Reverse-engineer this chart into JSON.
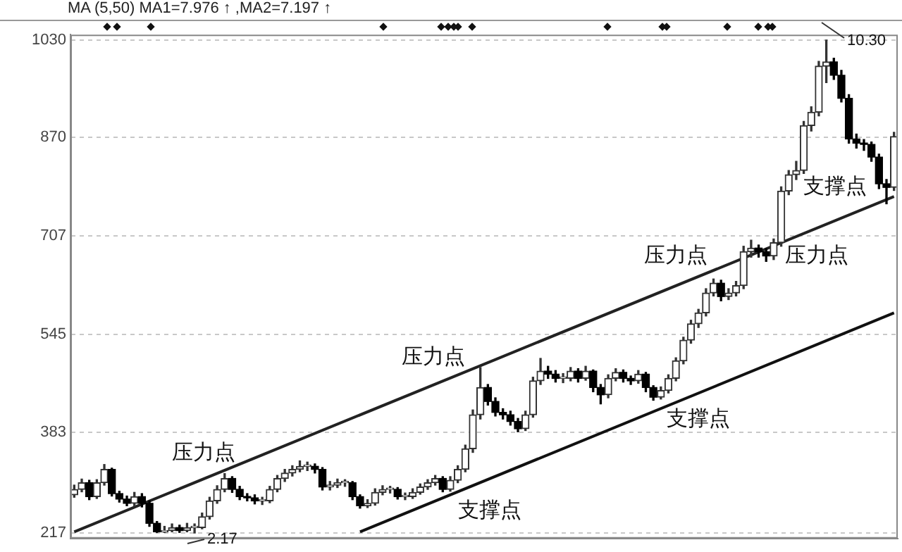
{
  "chart_data": {
    "type": "candlestick",
    "title": "MA (5,50)  MA1=7.976 ↑ ,MA2=7.197 ↑",
    "categories": [
      null,
      null,
      null,
      null,
      null,
      null,
      null,
      null,
      null,
      null,
      null,
      null,
      null,
      null,
      null,
      null,
      null,
      null,
      null,
      null,
      null,
      null,
      null,
      null,
      null,
      null,
      null,
      null,
      null,
      null,
      null,
      null,
      null,
      null,
      null,
      null,
      null,
      null,
      null,
      null,
      null,
      null,
      null,
      null,
      null,
      null,
      null,
      null,
      null,
      null,
      null,
      null,
      null,
      null,
      null,
      null,
      null,
      null,
      null,
      null,
      null,
      null,
      null,
      null,
      null,
      null,
      null,
      null,
      null,
      null,
      null,
      null,
      null,
      null,
      null,
      null,
      null,
      null,
      null,
      null,
      null,
      null,
      null,
      null,
      null,
      null,
      null,
      null,
      null,
      null,
      null,
      null,
      null,
      null,
      null,
      null,
      null,
      null,
      null,
      null,
      null,
      null,
      null,
      null,
      null,
      null,
      null,
      null,
      null,
      null
    ],
    "colors": [
      "#333333",
      "#333333",
      "#000000",
      "#333333",
      "#333333",
      "#000000",
      "#000000",
      "#000000",
      "#333333",
      "#000000",
      "#000000",
      "#000000",
      "#333333",
      "#333333",
      "#000000",
      "#333333",
      "#333333",
      "#333333",
      "#333333",
      "#333333",
      "#333333",
      "#000000",
      "#000000",
      "#000000",
      "#000000",
      "#333333",
      "#333333",
      "#333333",
      "#333333",
      "#333333",
      "#333333",
      "#333333",
      "#000000",
      "#000000",
      "#333333",
      "#333333",
      "#333333",
      "#000000",
      "#000000",
      "#333333",
      "#333333",
      "#333333",
      "#333333",
      "#000000",
      "#333333",
      "#333333",
      "#333333",
      "#333333",
      "#333333",
      "#000000",
      "#333333",
      "#333333",
      "#333333",
      "#333333",
      "#333333",
      "#000000",
      "#000000",
      "#000000",
      "#000000",
      "#000000",
      "#333333",
      "#333333",
      "#333333",
      "#000000",
      "#000000",
      "#333333",
      "#333333",
      "#000000",
      "#333333",
      "#000000",
      "#000000",
      "#333333",
      "#333333",
      "#000000",
      "#000000",
      "#333333",
      "#000000",
      "#000000",
      "#333333",
      "#333333",
      "#333333",
      "#333333",
      "#333333",
      "#333333",
      "#333333",
      "#333333",
      "#000000",
      "#333333",
      "#333333",
      "#333333",
      "#333333",
      "#000000",
      "#000000",
      "#333333",
      "#333333",
      "#333333",
      "#333333",
      "#333333",
      "#333333",
      "#333333",
      "#333333",
      "#000000",
      "#000000",
      "#000000",
      "#000000",
      "#000000",
      "#000000",
      "#000000",
      "#000000",
      "#333333"
    ],
    "ohlc": [
      [
        280,
        296,
        276,
        289
      ],
      [
        289,
        306,
        285,
        300
      ],
      [
        300,
        304,
        272,
        277
      ],
      [
        277,
        305,
        274,
        300
      ],
      [
        300,
        330,
        296,
        322
      ],
      [
        322,
        324,
        278,
        282
      ],
      [
        282,
        286,
        268,
        273
      ],
      [
        273,
        278,
        262,
        266
      ],
      [
        266,
        284,
        262,
        277
      ],
      [
        277,
        282,
        260,
        266
      ],
      [
        266,
        270,
        228,
        233
      ],
      [
        233,
        236,
        218,
        219
      ],
      [
        219,
        228,
        218,
        221
      ],
      [
        221,
        232,
        219,
        226
      ],
      [
        226,
        230,
        218,
        221
      ],
      [
        221,
        233,
        219,
        226
      ],
      [
        226,
        232,
        217,
        226
      ],
      [
        226,
        250,
        224,
        244
      ],
      [
        244,
        276,
        240,
        270
      ],
      [
        270,
        295,
        266,
        289
      ],
      [
        289,
        315,
        285,
        307
      ],
      [
        307,
        310,
        284,
        289
      ],
      [
        289,
        294,
        272,
        277
      ],
      [
        277,
        282,
        270,
        275
      ],
      [
        275,
        280,
        265,
        270
      ],
      [
        270,
        276,
        264,
        270
      ],
      [
        270,
        294,
        267,
        289
      ],
      [
        289,
        312,
        285,
        307
      ],
      [
        307,
        322,
        302,
        316
      ],
      [
        316,
        328,
        311,
        322
      ],
      [
        322,
        336,
        318,
        327
      ],
      [
        327,
        334,
        320,
        327
      ],
      [
        327,
        331,
        316,
        322
      ],
      [
        322,
        325,
        288,
        293
      ],
      [
        293,
        302,
        288,
        296
      ],
      [
        296,
        306,
        292,
        300
      ],
      [
        300,
        305,
        294,
        300
      ],
      [
        300,
        302,
        272,
        277
      ],
      [
        277,
        280,
        258,
        262
      ],
      [
        262,
        272,
        259,
        266
      ],
      [
        266,
        290,
        263,
        284
      ],
      [
        284,
        295,
        280,
        289
      ],
      [
        289,
        294,
        283,
        289
      ],
      [
        289,
        292,
        273,
        277
      ],
      [
        277,
        283,
        272,
        277
      ],
      [
        277,
        290,
        274,
        284
      ],
      [
        284,
        298,
        281,
        293
      ],
      [
        293,
        305,
        289,
        300
      ],
      [
        300,
        312,
        296,
        307
      ],
      [
        307,
        310,
        285,
        289
      ],
      [
        289,
        310,
        286,
        304
      ],
      [
        304,
        328,
        300,
        322
      ],
      [
        322,
        362,
        318,
        356
      ],
      [
        356,
        420,
        350,
        412
      ],
      [
        412,
        490,
        405,
        457
      ],
      [
        457,
        462,
        428,
        434
      ],
      [
        434,
        440,
        410,
        416
      ],
      [
        416,
        422,
        405,
        412
      ],
      [
        412,
        418,
        395,
        401
      ],
      [
        401,
        406,
        384,
        389
      ],
      [
        389,
        418,
        386,
        412
      ],
      [
        412,
        474,
        408,
        468
      ],
      [
        468,
        505,
        462,
        484
      ],
      [
        484,
        492,
        472,
        479
      ],
      [
        479,
        485,
        466,
        472
      ],
      [
        472,
        480,
        465,
        472
      ],
      [
        472,
        490,
        468,
        484
      ],
      [
        484,
        488,
        466,
        472
      ],
      [
        472,
        492,
        469,
        484
      ],
      [
        484,
        486,
        450,
        457
      ],
      [
        457,
        462,
        430,
        445
      ],
      [
        445,
        478,
        440,
        472
      ],
      [
        472,
        488,
        468,
        482
      ],
      [
        482,
        486,
        466,
        472
      ],
      [
        472,
        476,
        462,
        468
      ],
      [
        468,
        485,
        464,
        479
      ],
      [
        479,
        482,
        450,
        457
      ],
      [
        457,
        460,
        436,
        441
      ],
      [
        441,
        458,
        438,
        452
      ],
      [
        452,
        478,
        448,
        472
      ],
      [
        472,
        506,
        468,
        501
      ],
      [
        501,
        540,
        496,
        535
      ],
      [
        535,
        568,
        530,
        562
      ],
      [
        562,
        586,
        556,
        580
      ],
      [
        580,
        620,
        575,
        613
      ],
      [
        613,
        636,
        608,
        629
      ],
      [
        629,
        634,
        600,
        607
      ],
      [
        607,
        620,
        602,
        613
      ],
      [
        613,
        632,
        608,
        625
      ],
      [
        625,
        690,
        620,
        681
      ],
      [
        681,
        700,
        672,
        687
      ],
      [
        687,
        692,
        672,
        681
      ],
      [
        681,
        686,
        665,
        674
      ],
      [
        674,
        702,
        668,
        696
      ],
      [
        696,
        788,
        690,
        781
      ],
      [
        781,
        815,
        775,
        808
      ],
      [
        808,
        830,
        800,
        815
      ],
      [
        815,
        896,
        810,
        889
      ],
      [
        889,
        920,
        880,
        911
      ],
      [
        911,
        995,
        905,
        987
      ],
      [
        987,
        1030,
        960,
        994
      ],
      [
        994,
        1000,
        965,
        972
      ],
      [
        972,
        980,
        928,
        934
      ],
      [
        934,
        940,
        860,
        867
      ],
      [
        867,
        875,
        852,
        860
      ],
      [
        860,
        866,
        848,
        858
      ],
      [
        858,
        862,
        830,
        837
      ],
      [
        837,
        842,
        785,
        793
      ],
      [
        793,
        800,
        760,
        787
      ],
      [
        787,
        878,
        782,
        871
      ]
    ],
    "series": [
      {
        "type": "line",
        "color": "#222222",
        "values": [
          219,
          null,
          null,
          null,
          null,
          null,
          null,
          null,
          null,
          null,
          null,
          null,
          null,
          null,
          null,
          null,
          null,
          null,
          null,
          null,
          null,
          null,
          null,
          null,
          null,
          null,
          null,
          null,
          null,
          null,
          null,
          null,
          null,
          null,
          null,
          null,
          null,
          null,
          null,
          null,
          null,
          null,
          null,
          null,
          null,
          null,
          null,
          null,
          null,
          null,
          null,
          null,
          null,
          null,
          null,
          null,
          null,
          null,
          null,
          null,
          null,
          null,
          null,
          null,
          null,
          null,
          null,
          null,
          null,
          null,
          null,
          null,
          null,
          null,
          null,
          null,
          null,
          null,
          null,
          null,
          null,
          null,
          null,
          null,
          null,
          null,
          null,
          null,
          null,
          null,
          null,
          null,
          null,
          null,
          null,
          null,
          null,
          null,
          null,
          null,
          null,
          null,
          null,
          null,
          null,
          null,
          null,
          null,
          null,
          772
        ]
      },
      {
        "type": "line",
        "color": "#111111",
        "values": [
          null,
          null,
          null,
          null,
          null,
          null,
          null,
          null,
          null,
          null,
          null,
          null,
          null,
          null,
          null,
          null,
          null,
          null,
          null,
          null,
          null,
          null,
          null,
          null,
          null,
          null,
          null,
          null,
          null,
          null,
          null,
          null,
          null,
          null,
          null,
          null,
          null,
          null,
          219,
          null,
          null,
          null,
          null,
          null,
          null,
          null,
          null,
          null,
          null,
          null,
          null,
          null,
          null,
          null,
          null,
          null,
          null,
          null,
          null,
          null,
          null,
          null,
          null,
          null,
          null,
          null,
          null,
          null,
          null,
          null,
          null,
          null,
          null,
          null,
          null,
          null,
          null,
          null,
          null,
          null,
          null,
          null,
          null,
          null,
          null,
          null,
          null,
          null,
          null,
          null,
          null,
          null,
          null,
          null,
          null,
          null,
          null,
          null,
          null,
          null,
          null,
          null,
          null,
          null,
          null,
          null,
          null,
          null,
          null,
          580
        ]
      }
    ],
    "ylim": [
      208,
      1039
    ],
    "yticks": [
      217,
      383,
      545,
      707,
      870,
      1030
    ],
    "grid": "y",
    "tick_labels": "y",
    "marker": "none",
    "annotations": [
      "压力点",
      "压力点",
      "压力点",
      "压力点",
      "支撑点",
      "支撑点",
      "支撑点",
      "10.30",
      "2.17"
    ]
  }
}
